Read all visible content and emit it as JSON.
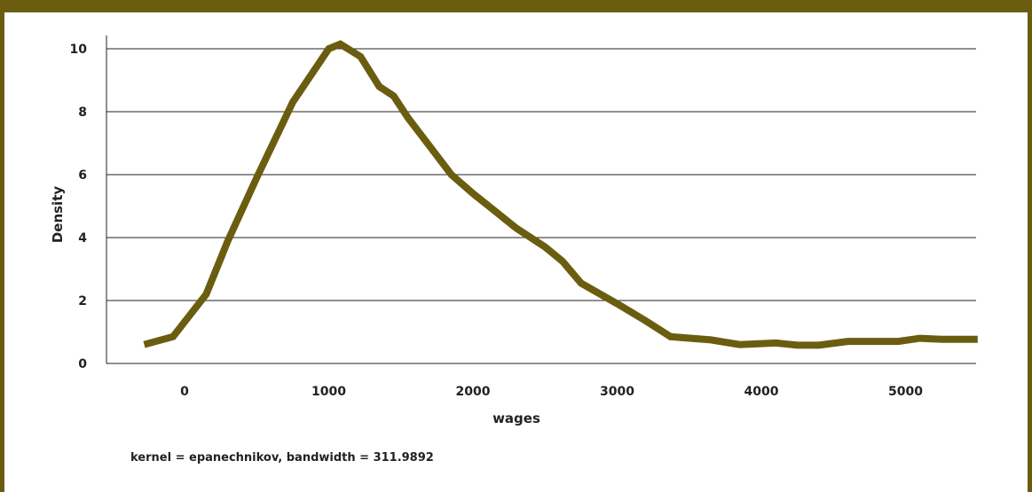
{
  "chart_data": {
    "type": "line",
    "title": "",
    "xlabel": "wages",
    "ylabel": "Density",
    "note": "kernel = epanechnikov, bandwidth = 311.9892",
    "xlim": [
      -500,
      5500
    ],
    "ylim": [
      0,
      10.5
    ],
    "xticks": [
      0,
      1000,
      2000,
      3000,
      4000,
      5000
    ],
    "yticks": [
      0,
      2,
      4,
      6,
      8,
      10
    ],
    "grid": "horizontal",
    "line_color": "#6b5d10",
    "series": [
      {
        "x": [
          -280,
          -80,
          150,
          300,
          500,
          750,
          1000,
          1080,
          1220,
          1350,
          1450,
          1550,
          1700,
          1850,
          2000,
          2150,
          2300,
          2500,
          2620,
          2750,
          3000,
          3200,
          3370,
          3650,
          3850,
          4100,
          4250,
          4400,
          4600,
          4950,
          5100,
          5250,
          5500
        ],
        "y": [
          0.6,
          0.85,
          2.2,
          3.9,
          5.9,
          8.3,
          10.0,
          10.15,
          9.75,
          8.8,
          8.5,
          7.8,
          6.9,
          6.0,
          5.4,
          4.85,
          4.3,
          3.7,
          3.25,
          2.55,
          1.9,
          1.35,
          0.85,
          0.75,
          0.6,
          0.65,
          0.58,
          0.58,
          0.7,
          0.7,
          0.8,
          0.77,
          0.77
        ]
      }
    ]
  }
}
